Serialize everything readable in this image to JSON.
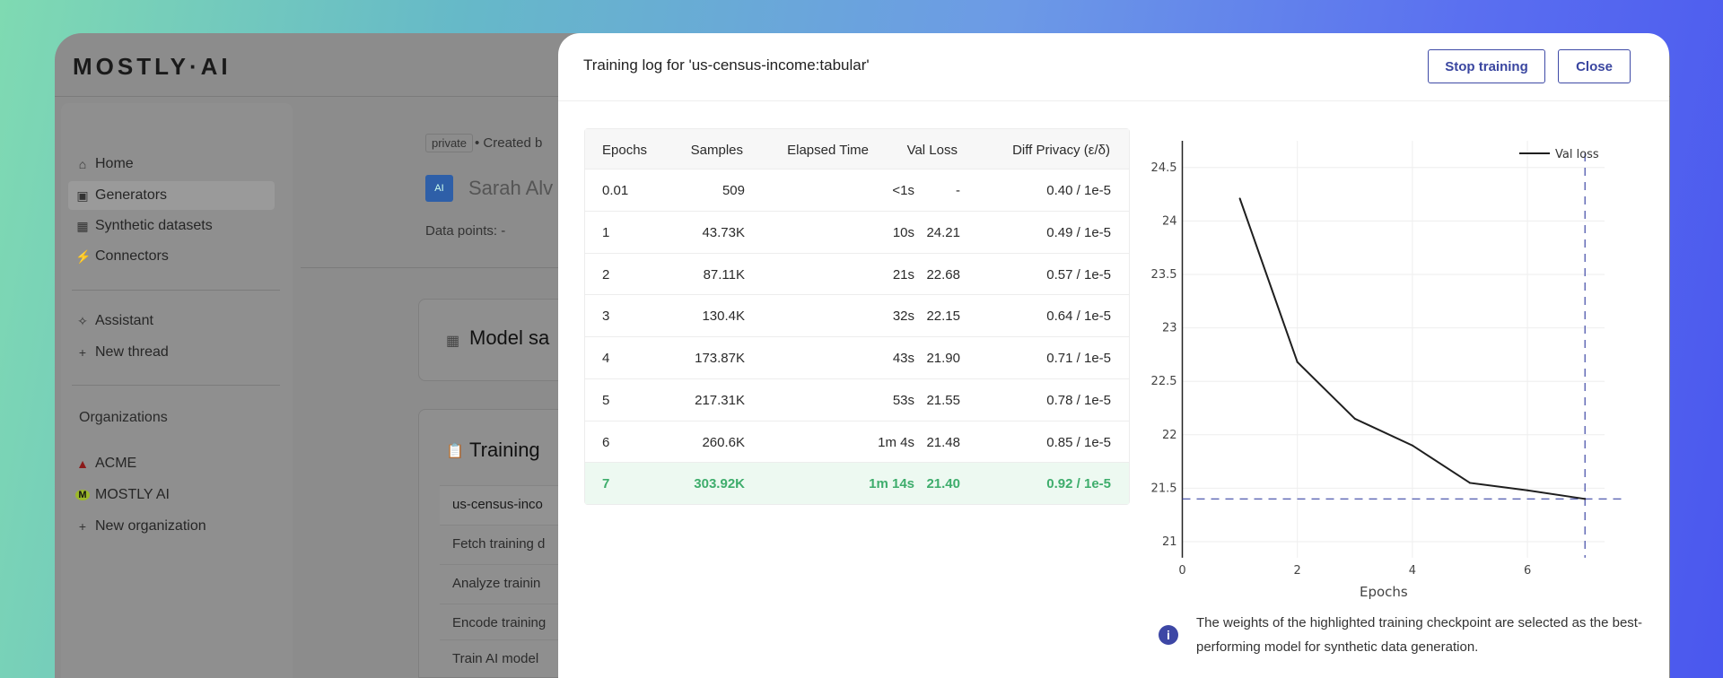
{
  "app": {
    "logo": "MOSTLY·AI",
    "sidebar": {
      "items": [
        {
          "label": "Home",
          "icon": "home-icon"
        },
        {
          "label": "Generators",
          "icon": "ai-chip-icon",
          "selected": true
        },
        {
          "label": "Synthetic datasets",
          "icon": "table-icon"
        },
        {
          "label": "Connectors",
          "icon": "plug-icon"
        }
      ],
      "assistant": [
        {
          "label": "Assistant",
          "icon": "sparkle-icon"
        },
        {
          "label": "New thread",
          "icon": "plus-icon"
        }
      ],
      "org_heading": "Organizations",
      "orgs": [
        {
          "label": "ACME",
          "icon": "acme-logo"
        },
        {
          "label": "MOSTLY AI",
          "icon": "mostly-logo"
        },
        {
          "label": "New organization",
          "icon": "plus-icon"
        }
      ]
    },
    "main": {
      "badge": "private",
      "created": "• Created b",
      "name": "Sarah Alv",
      "data_points": "Data points: -",
      "card1_title": "Model sa",
      "card2_title": "Training",
      "steps": [
        "us-census-inco",
        "Fetch training d",
        "Analyze trainin",
        "Encode training",
        "Train AI model"
      ]
    }
  },
  "modal": {
    "title": "Training log for 'us-census-income:tabular'",
    "stop_label": "Stop training",
    "close_label": "Close",
    "table": {
      "headers": [
        "Epochs",
        "Samples",
        "Elapsed Time",
        "Val Loss",
        "Diff Privacy (ε/δ)"
      ],
      "rows": [
        [
          "0.01",
          "509",
          "<1s",
          "-",
          "0.40 / 1e-5"
        ],
        [
          "1",
          "43.73K",
          "10s",
          "24.21",
          "0.49 / 1e-5"
        ],
        [
          "2",
          "87.11K",
          "21s",
          "22.68",
          "0.57 / 1e-5"
        ],
        [
          "3",
          "130.4K",
          "32s",
          "22.15",
          "0.64 / 1e-5"
        ],
        [
          "4",
          "173.87K",
          "43s",
          "21.90",
          "0.71 / 1e-5"
        ],
        [
          "5",
          "217.31K",
          "53s",
          "21.55",
          "0.78 / 1e-5"
        ],
        [
          "6",
          "260.6K",
          "1m 4s",
          "21.48",
          "0.85 / 1e-5"
        ],
        [
          "7",
          "303.92K",
          "1m 14s",
          "21.40",
          "0.92 / 1e-5"
        ]
      ],
      "highlight_row": 7,
      "highlight_color": "#3ead6c"
    },
    "info": "The weights of the highlighted training checkpoint are selected as the best-performing model for synthetic data generation."
  },
  "chart_data": {
    "type": "line",
    "xlabel": "Epochs",
    "ylabel": "",
    "xlim": [
      0,
      7.4
    ],
    "ylim": [
      20.85,
      24.75
    ],
    "xticks": [
      0,
      2,
      4,
      6
    ],
    "yticks": [
      21,
      21.5,
      22,
      22.5,
      23,
      23.5,
      24,
      24.5
    ],
    "grid": true,
    "legend": "top-right",
    "series": [
      {
        "name": "Val loss",
        "color": "#1f1f1f",
        "x": [
          1,
          2,
          3,
          4,
          5,
          6,
          7
        ],
        "y": [
          24.21,
          22.68,
          22.15,
          21.9,
          21.55,
          21.48,
          21.4
        ]
      }
    ],
    "best_point": {
      "x": 7,
      "y": 21.4,
      "marker_color": "#3d47a5"
    }
  }
}
